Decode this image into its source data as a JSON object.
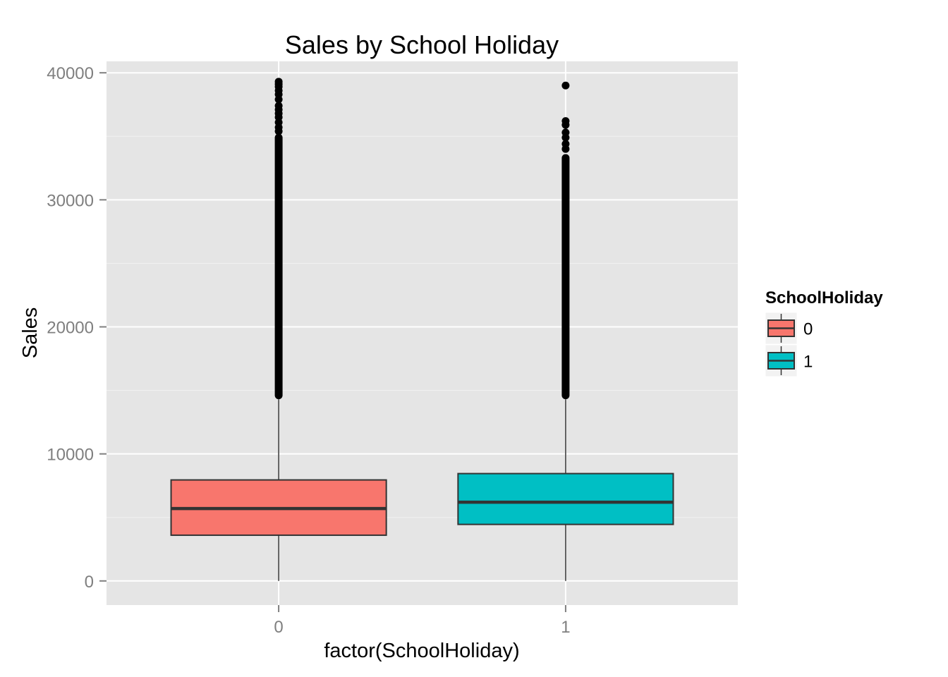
{
  "chart_data": {
    "type": "box",
    "title": "Sales by School Holiday",
    "xlabel": "factor(SchoolHoliday)",
    "ylabel": "Sales",
    "categories": [
      "0",
      "1"
    ],
    "ylim": [
      -1900,
      40900
    ],
    "yticks": [
      0,
      10000,
      20000,
      30000,
      40000
    ],
    "grid": true,
    "background": "#e5e5e5",
    "legend": {
      "title": "SchoolHoliday",
      "position": "right",
      "entries": [
        {
          "label": "0",
          "color": "#f8766d"
        },
        {
          "label": "1",
          "color": "#00bfc4"
        }
      ]
    },
    "series": [
      {
        "category": "0",
        "color": "#f8766d",
        "whisker_low": 0,
        "q1": 3600,
        "median": 5700,
        "q3": 7950,
        "whisker_high": 14300,
        "outlier_range": [
          14300,
          35200
        ],
        "outliers_sparse": [
          35400,
          35700,
          36100,
          36500,
          36800,
          37100,
          37400,
          37900,
          38300,
          38600,
          38900,
          39100,
          39300
        ]
      },
      {
        "category": "1",
        "color": "#00bfc4",
        "whisker_low": 0,
        "q1": 4450,
        "median": 6200,
        "q3": 8450,
        "whisker_high": 14300,
        "outlier_range": [
          14300,
          33600
        ],
        "outliers_sparse": [
          34000,
          34400,
          34900,
          35300,
          35900,
          36200,
          39000
        ]
      }
    ]
  }
}
